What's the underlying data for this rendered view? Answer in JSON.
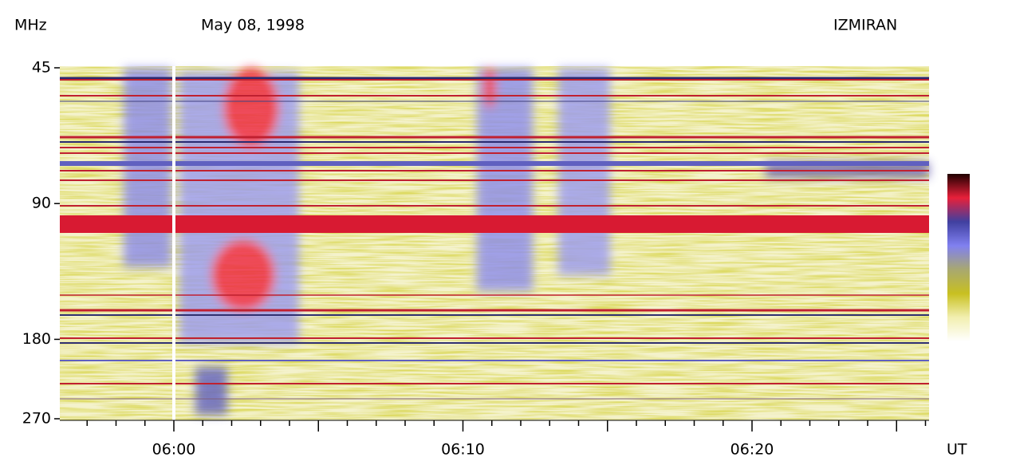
{
  "chart_data": {
    "type": "spectrogram",
    "title": "May 08, 1998",
    "source": "IZMIRAN",
    "y_label": "MHz",
    "x_label": "UT",
    "y_log": true,
    "ylim": [
      45,
      270
    ],
    "yticks": [
      45,
      90,
      180,
      270
    ],
    "xlim": [
      356,
      386
    ],
    "xticks": [
      {
        "value": 360,
        "label": "06:00"
      },
      {
        "value": 370,
        "label": "06:10"
      },
      {
        "value": 380,
        "label": "06:20"
      }
    ],
    "xminorticks": [
      357,
      358,
      359,
      361,
      362,
      363,
      364,
      365,
      366,
      367,
      368,
      369,
      371,
      372,
      373,
      374,
      375,
      376,
      377,
      378,
      379,
      381,
      382,
      383,
      384,
      385,
      386
    ],
    "colorbar": [
      "#ffffff",
      "#f2efb0",
      "#c8c020",
      "#a8a870",
      "#8080f0",
      "#4040a0",
      "#e8203a",
      "#200000"
    ]
  }
}
